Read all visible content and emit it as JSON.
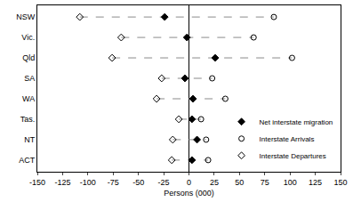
{
  "chart_data": {
    "type": "dot",
    "orientation": "horizontal",
    "x_label": "Persons (000)",
    "categories": [
      "NSW",
      "Vic.",
      "Qld",
      "SA",
      "WA",
      "Tas.",
      "NT",
      "ACT"
    ],
    "series": [
      {
        "name": "Net interstate migration",
        "color": "#000000",
        "marker": "diamond",
        "values": [
          -24,
          -2,
          26,
          -4,
          4,
          3,
          8,
          3
        ]
      },
      {
        "name": "Interstate Arrivals",
        "color": "#000000",
        "marker": "circle-open",
        "values": [
          84,
          64,
          102,
          23,
          36,
          12,
          17,
          19
        ]
      },
      {
        "name": "Interstate Departures",
        "color": "#000000",
        "marker": "diamond-open",
        "values": [
          -108,
          -67,
          -76,
          -27,
          -32,
          -10,
          -16,
          -17
        ]
      }
    ],
    "line_style": "dashed",
    "xlim": [
      -150,
      150
    ],
    "xticks": [
      -150,
      -125,
      -100,
      -75,
      -50,
      -25,
      0,
      25,
      50,
      75,
      100,
      125,
      150
    ],
    "grid": false,
    "legend": "lower right"
  }
}
